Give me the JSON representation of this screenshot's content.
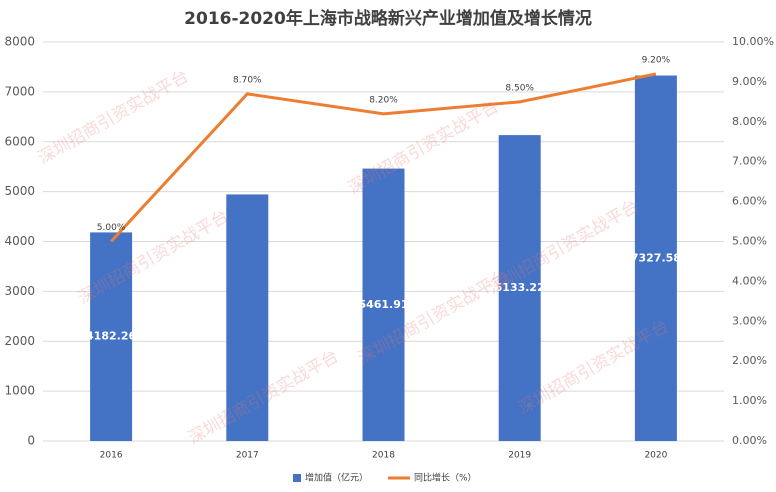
{
  "chart_data": {
    "type": "bar-line",
    "title": "2016-2020年上海市战略新兴产业增加值及增长情况",
    "watermark": "深圳招商引资实战平台",
    "categories": [
      "2016",
      "2017",
      "2018",
      "2019",
      "2020"
    ],
    "ylim": [
      0,
      8000
    ],
    "yticks": [
      0,
      1000,
      2000,
      3000,
      4000,
      5000,
      6000,
      7000,
      8000
    ],
    "y2lim": [
      0,
      10
    ],
    "y2ticks": [
      {
        "value": 0,
        "label": "0.00%"
      },
      {
        "value": 1,
        "label": "1.00%"
      },
      {
        "value": 2,
        "label": "2.00%"
      },
      {
        "value": 3,
        "label": "3.00%"
      },
      {
        "value": 4,
        "label": "4.00%"
      },
      {
        "value": 5,
        "label": "5.00%"
      },
      {
        "value": 6,
        "label": "6.00%"
      },
      {
        "value": 7,
        "label": "7.00%"
      },
      {
        "value": 8,
        "label": "8.00%"
      },
      {
        "value": 9,
        "label": "9.00%"
      },
      {
        "value": 10,
        "label": "10.00%"
      }
    ],
    "grid": true,
    "legend": "bottom",
    "series": [
      {
        "name": "增加值（亿元）",
        "type": "bar",
        "color": "#4472c4",
        "values": [
          4182.26,
          4943.51,
          5461.91,
          6133.22,
          7327.58
        ],
        "value_labels": [
          "4182.26",
          null,
          "5461.91",
          "6133.22",
          "7327.58"
        ]
      },
      {
        "name": "同比增长（%）",
        "type": "line",
        "axis": "y2",
        "color": "#ed7d31",
        "values": [
          5.0,
          8.7,
          8.2,
          8.5,
          9.2
        ],
        "value_labels": [
          "5.00%",
          "8.70%",
          "8.20%",
          "8.50%",
          "9.20%"
        ]
      }
    ]
  }
}
